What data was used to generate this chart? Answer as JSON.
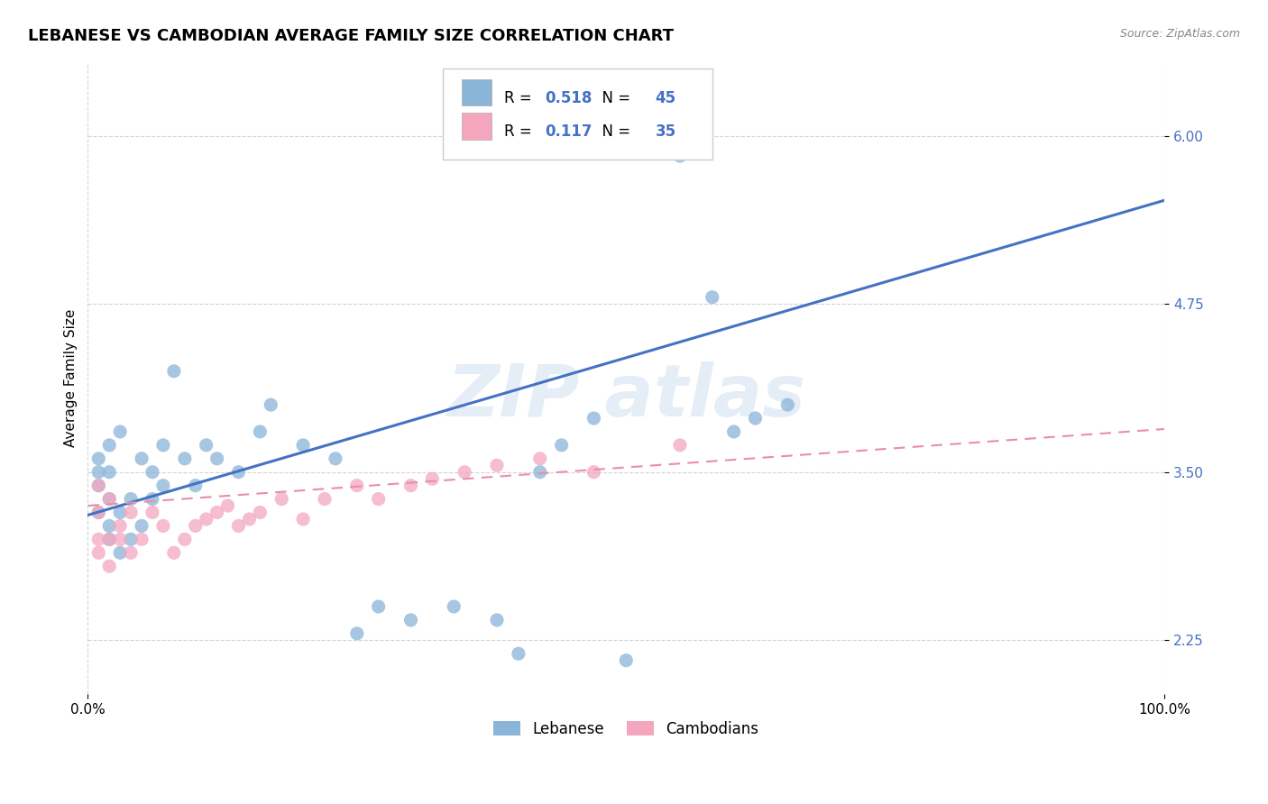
{
  "title": "LEBANESE VS CAMBODIAN AVERAGE FAMILY SIZE CORRELATION CHART",
  "source": "Source: ZipAtlas.com",
  "ylabel": "Average Family Size",
  "legend_label1": "Lebanese",
  "legend_label2": "Cambodians",
  "r1": 0.518,
  "n1": 45,
  "r2": 0.117,
  "n2": 35,
  "yticks": [
    2.25,
    3.5,
    4.75,
    6.0
  ],
  "xlim": [
    0.0,
    100.0
  ],
  "ylim": [
    1.85,
    6.55
  ],
  "lebanese_color": "#8ab4d8",
  "cambodian_color": "#f4a6bf",
  "trendline1_color": "#4472c4",
  "trendline2_color": "#e88ea8",
  "legend_r_color": "#4472c4",
  "background_color": "#ffffff",
  "grid_color": "#c8c8c8",
  "title_fontsize": 13,
  "axis_label_fontsize": 11,
  "tick_fontsize": 11,
  "trendline1_start_y": 3.18,
  "trendline1_end_y": 5.52,
  "trendline2_start_y": 3.25,
  "trendline2_end_y": 3.82,
  "lebanese_x": [
    1,
    1,
    1,
    1,
    2,
    2,
    2,
    2,
    2,
    3,
    3,
    3,
    4,
    4,
    5,
    5,
    6,
    6,
    7,
    7,
    8,
    9,
    10,
    11,
    12,
    14,
    16,
    17,
    20,
    23,
    25,
    27,
    30,
    34,
    38,
    40,
    42,
    44,
    47,
    50,
    55,
    58,
    60,
    62,
    65
  ],
  "lebanese_y": [
    3.2,
    3.4,
    3.5,
    3.6,
    3.0,
    3.1,
    3.3,
    3.5,
    3.7,
    2.9,
    3.2,
    3.8,
    3.0,
    3.3,
    3.1,
    3.6,
    3.3,
    3.5,
    3.4,
    3.7,
    4.25,
    3.6,
    3.4,
    3.7,
    3.6,
    3.5,
    3.8,
    4.0,
    3.7,
    3.6,
    2.3,
    2.5,
    2.4,
    2.5,
    2.4,
    2.15,
    3.5,
    3.7,
    3.9,
    2.1,
    5.85,
    4.8,
    3.8,
    3.9,
    4.0
  ],
  "cambodian_x": [
    1,
    1,
    1,
    1,
    2,
    2,
    2,
    3,
    3,
    4,
    4,
    5,
    6,
    7,
    8,
    9,
    10,
    11,
    12,
    13,
    14,
    15,
    16,
    18,
    20,
    22,
    25,
    27,
    30,
    32,
    35,
    38,
    42,
    47,
    55
  ],
  "cambodian_y": [
    2.9,
    3.0,
    3.2,
    3.4,
    2.8,
    3.0,
    3.3,
    3.0,
    3.1,
    2.9,
    3.2,
    3.0,
    3.2,
    3.1,
    2.9,
    3.0,
    3.1,
    3.15,
    3.2,
    3.25,
    3.1,
    3.15,
    3.2,
    3.3,
    3.15,
    3.3,
    3.4,
    3.3,
    3.4,
    3.45,
    3.5,
    3.55,
    3.6,
    3.5,
    3.7
  ]
}
